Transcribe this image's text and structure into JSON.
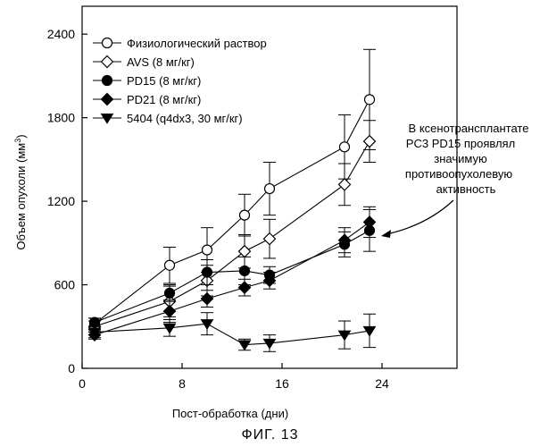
{
  "chart_data": {
    "type": "line",
    "title": "",
    "xlabel": "Пост-обработка (дни)",
    "ylabel": "Объем опухоли (мм",
    "ylabel_sup": "3",
    "ylabel_close": ")",
    "xlim": [
      0,
      30
    ],
    "ylim": [
      0,
      2600
    ],
    "xticks": [
      0,
      8,
      16,
      24
    ],
    "yticks": [
      0,
      600,
      1200,
      1800,
      2400
    ],
    "grid": false,
    "legend_position": "top-left",
    "series": [
      {
        "name": "Физиологический раствор",
        "marker": "open-circle",
        "x": [
          1,
          7,
          10,
          13,
          15,
          21,
          23
        ],
        "y": [
          320,
          740,
          850,
          1100,
          1290,
          1590,
          1930
        ],
        "err": [
          40,
          130,
          160,
          150,
          190,
          230,
          360
        ]
      },
      {
        "name": "AVS (8 мг/кг)",
        "marker": "open-diamond",
        "x": [
          1,
          7,
          10,
          13,
          15,
          21,
          23
        ],
        "y": [
          300,
          480,
          630,
          840,
          930,
          1320,
          1630
        ],
        "err": [
          40,
          110,
          110,
          120,
          140,
          150,
          150
        ]
      },
      {
        "name": "PD15 (8 мг/кг)",
        "marker": "filled-circle",
        "x": [
          1,
          7,
          10,
          13,
          15,
          21,
          23
        ],
        "y": [
          330,
          540,
          690,
          700,
          670,
          890,
          990
        ],
        "err": [
          30,
          60,
          90,
          100,
          60,
          90,
          150
        ]
      },
      {
        "name": "PD21 (8 мг/кг)",
        "marker": "filled-diamond",
        "x": [
          1,
          7,
          10,
          13,
          15,
          21,
          23
        ],
        "y": [
          240,
          410,
          500,
          580,
          630,
          920,
          1050
        ],
        "err": [
          30,
          80,
          60,
          60,
          60,
          90,
          110
        ]
      },
      {
        "name": "5404 (q4dx3, 30 мг/кг)",
        "marker": "filled-triangle-down",
        "x": [
          1,
          7,
          10,
          13,
          15,
          21,
          23
        ],
        "y": [
          260,
          290,
          320,
          170,
          180,
          240,
          270
        ],
        "err": [
          40,
          60,
          80,
          40,
          60,
          100,
          120
        ]
      }
    ],
    "annotation": {
      "lines": [
        "В ксенотрансплантате",
        "PC3 PD15 проявлял",
        "значимую",
        "противоопухолевую",
        "активность"
      ]
    }
  },
  "caption": "ФИГ. 13"
}
